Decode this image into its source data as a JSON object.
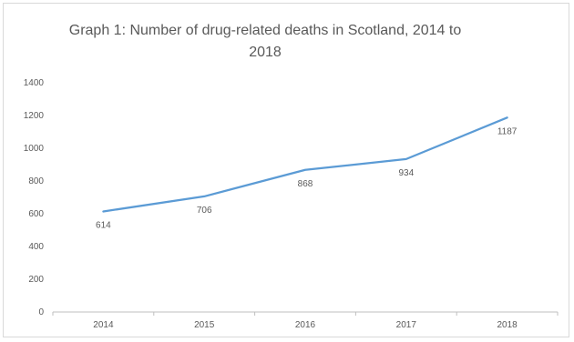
{
  "chart_data": {
    "type": "line",
    "title": "Graph 1: Number of drug-related deaths in Scotland, 2014 to 2018",
    "categories": [
      "2014",
      "2015",
      "2016",
      "2017",
      "2018"
    ],
    "series": [
      {
        "values": [
          614,
          706,
          868,
          934,
          1187
        ],
        "color": "#5b9bd5"
      }
    ],
    "data_labels": [
      "614",
      "706",
      "868",
      "934",
      "1187"
    ],
    "ylim": [
      0,
      1400
    ],
    "yticks": [
      0,
      200,
      400,
      600,
      800,
      1000,
      1200,
      1400
    ],
    "ytick_labels": [
      "0",
      "200",
      "400",
      "600",
      "800",
      "1000",
      "1200",
      "1400"
    ],
    "xlabel": "",
    "ylabel": "",
    "grid": false,
    "legend": "none"
  }
}
